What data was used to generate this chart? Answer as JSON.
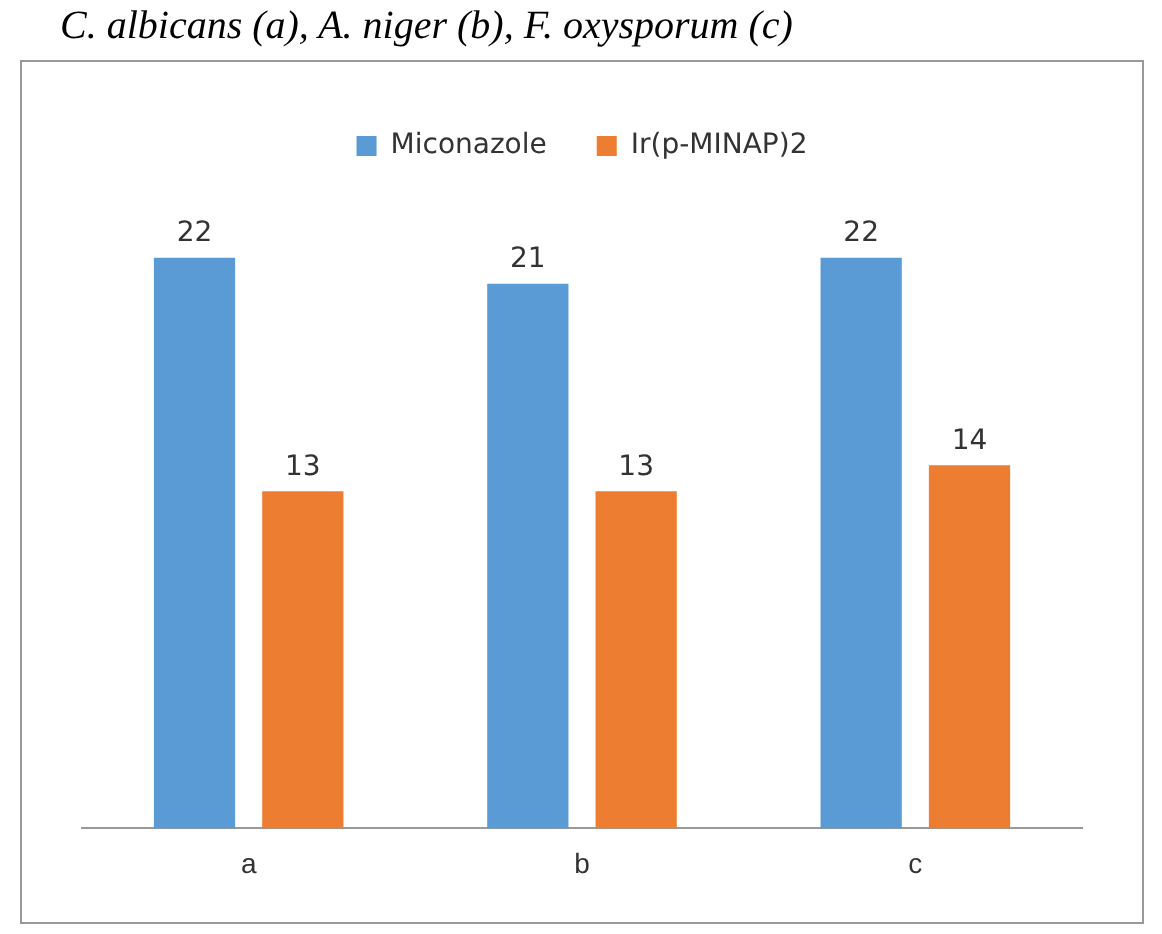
{
  "chart_data": {
    "type": "bar",
    "title": "C. albicans (a), A. niger (b), F. oxysporum (c)",
    "categories": [
      "a",
      "b",
      "c"
    ],
    "series": [
      {
        "name": "Miconazole",
        "color": "#5b9bd5",
        "values": [
          22,
          21,
          22
        ]
      },
      {
        "name": "Ir(p-MINAP)2",
        "color": "#ed7d31",
        "values": [
          13,
          13,
          14
        ]
      }
    ],
    "data_labels": true,
    "legend": "top",
    "grid": false
  }
}
